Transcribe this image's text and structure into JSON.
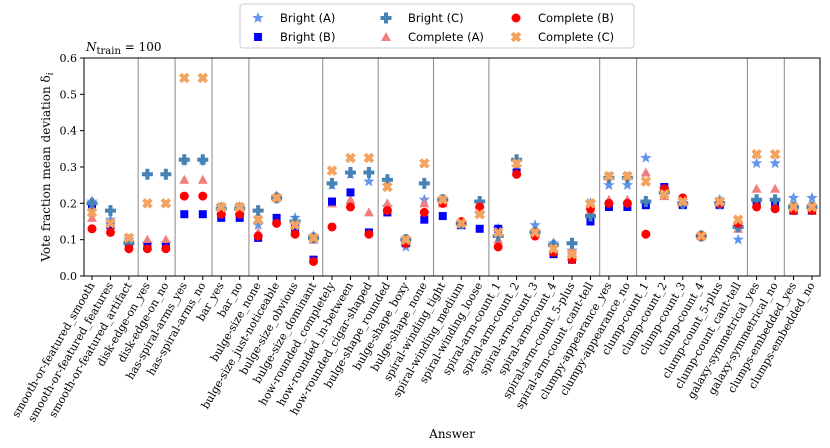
{
  "chart_data": {
    "type": "scatter",
    "title_prefix": "N",
    "title_subscript": "train",
    "title_suffix": " = 100",
    "xlabel": "Answer",
    "ylabel_main": "Vote fraction mean deviation δ",
    "ylabel_subscript": "i",
    "ylim": [
      0,
      0.6
    ],
    "yticks": [
      "0.0",
      "0.1",
      "0.2",
      "0.3",
      "0.4",
      "0.5",
      "0.6"
    ],
    "categories": [
      "smooth-or-featured_smooth",
      "smooth-or-featured_features",
      "smooth-or-featured_artifact",
      "disk-edge-on_yes",
      "disk-edge-on_no",
      "has-spiral-arms_yes",
      "has-spiral-arms_no",
      "bar_yes",
      "bar_no",
      "bulge-size_none",
      "bulge-size_just-noticeable",
      "bulge-size_obvious",
      "bulge-size_dominant",
      "how-rounded_completely",
      "how-rounded_in-between",
      "how-rounded_cigar-shaped",
      "bulge-shape_rounded",
      "bulge-shape_boxy",
      "bulge-shape_none",
      "spiral-winding_tight",
      "spiral-winding_medium",
      "spiral-winding_loose",
      "spiral-arm-count_1",
      "spiral-arm-count_2",
      "spiral-arm-count_3",
      "spiral-arm-count_4",
      "spiral-arm-count_5-plus",
      "spiral-arm-count_cant-tell",
      "clumpy-appearance_yes",
      "clumpy-appearance_no",
      "clump-count_1",
      "clump-count_2",
      "clump-count_3",
      "clump-count_4",
      "clump-count_5-plus",
      "clump-count_cant-tell",
      "galaxy-symmetrical_yes",
      "galaxy-symmetrical_no",
      "clumps-embedded_yes",
      "clumps-embedded_no"
    ],
    "group_boundaries_after": [
      2,
      4,
      6,
      8,
      12,
      15,
      18,
      21,
      27,
      29,
      35,
      37
    ],
    "series": [
      {
        "name": "Bright (A)",
        "color": "#6495ed",
        "marker": "star",
        "values": [
          0.205,
          0.155,
          0.1,
          0.09,
          0.09,
          0.32,
          0.32,
          0.19,
          0.19,
          0.14,
          0.22,
          0.16,
          0.11,
          0.25,
          0.28,
          0.26,
          0.19,
          0.08,
          0.21,
          0.21,
          0.14,
          0.17,
          0.13,
          0.3,
          0.14,
          0.09,
          0.07,
          0.2,
          0.25,
          0.25,
          0.325,
          0.24,
          0.2,
          0.11,
          0.21,
          0.1,
          0.31,
          0.31,
          0.215,
          0.215
        ]
      },
      {
        "name": "Complete (A)",
        "color": "#f08080",
        "marker": "triangle",
        "values": [
          0.16,
          0.14,
          0.1,
          0.1,
          0.1,
          0.265,
          0.265,
          0.18,
          0.18,
          0.12,
          0.215,
          0.15,
          0.1,
          0.2,
          0.21,
          0.175,
          0.2,
          0.1,
          0.2,
          0.2,
          0.14,
          0.2,
          0.1,
          0.29,
          0.12,
          0.07,
          0.07,
          0.18,
          0.21,
          0.21,
          0.285,
          0.22,
          0.2,
          0.11,
          0.2,
          0.13,
          0.24,
          0.24,
          0.18,
          0.18
        ]
      },
      {
        "name": "Bright (B)",
        "color": "#0000ff",
        "marker": "square",
        "values": [
          0.19,
          0.14,
          0.085,
          0.08,
          0.08,
          0.17,
          0.17,
          0.16,
          0.16,
          0.105,
          0.16,
          0.13,
          0.045,
          0.205,
          0.23,
          0.12,
          0.175,
          0.09,
          0.155,
          0.165,
          0.14,
          0.13,
          0.13,
          0.285,
          0.12,
          0.06,
          0.045,
          0.15,
          0.19,
          0.19,
          0.195,
          0.245,
          0.195,
          0.11,
          0.195,
          0.14,
          0.2,
          0.2,
          0.18,
          0.18
        ]
      },
      {
        "name": "Bright (C)",
        "color": "#4682b4",
        "marker": "plus",
        "values": [
          0.2,
          0.18,
          0.09,
          0.28,
          0.28,
          0.32,
          0.32,
          0.185,
          0.185,
          0.18,
          0.215,
          0.15,
          0.105,
          0.255,
          0.285,
          0.285,
          0.265,
          0.1,
          0.255,
          0.21,
          0.145,
          0.205,
          0.11,
          0.32,
          0.12,
          0.085,
          0.09,
          0.165,
          0.27,
          0.27,
          0.205,
          0.23,
          0.2,
          0.11,
          0.2,
          0.135,
          0.21,
          0.21,
          0.19,
          0.19
        ]
      },
      {
        "name": "Complete (B)",
        "color": "#ff0000",
        "marker": "circle",
        "values": [
          0.13,
          0.12,
          0.075,
          0.075,
          0.075,
          0.22,
          0.22,
          0.17,
          0.17,
          0.11,
          0.145,
          0.115,
          0.04,
          0.135,
          0.19,
          0.115,
          0.18,
          0.09,
          0.175,
          0.2,
          0.15,
          0.19,
          0.08,
          0.28,
          0.11,
          0.065,
          0.045,
          0.185,
          0.2,
          0.2,
          0.115,
          0.24,
          0.215,
          0.11,
          0.2,
          0.145,
          0.19,
          0.185,
          0.18,
          0.18
        ]
      },
      {
        "name": "Complete (C)",
        "color": "#f4a460",
        "marker": "cross",
        "values": [
          0.175,
          0.145,
          0.105,
          0.2,
          0.2,
          0.545,
          0.545,
          0.19,
          0.19,
          0.155,
          0.215,
          0.14,
          0.105,
          0.29,
          0.325,
          0.325,
          0.245,
          0.1,
          0.31,
          0.21,
          0.145,
          0.17,
          0.12,
          0.31,
          0.12,
          0.075,
          0.06,
          0.2,
          0.275,
          0.275,
          0.26,
          0.225,
          0.205,
          0.11,
          0.205,
          0.155,
          0.335,
          0.335,
          0.19,
          0.19
        ]
      }
    ],
    "legend": {
      "placement": "top-center",
      "order": [
        0,
        2,
        3,
        1,
        4,
        5
      ]
    }
  }
}
